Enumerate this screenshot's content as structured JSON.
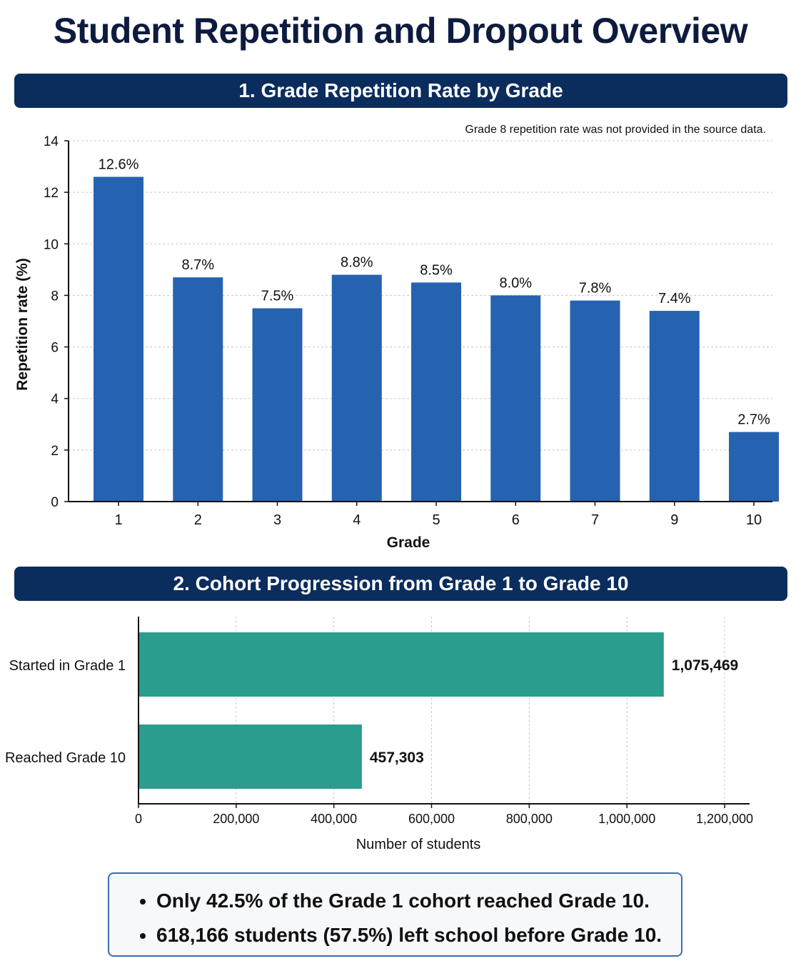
{
  "page": {
    "title": "Student Repetition and Dropout Overview"
  },
  "colors": {
    "banner": "#0b2d5e",
    "bar_blue": "#2563b0",
    "bar_teal": "#2a9d8f",
    "summary_border": "#3b6db3"
  },
  "chart_data": [
    {
      "type": "bar",
      "title": "1. Grade Repetition Rate by Grade",
      "note": "Grade 8 repetition rate was not provided in the source data.",
      "categories": [
        "1",
        "2",
        "3",
        "4",
        "5",
        "6",
        "7",
        "9",
        "10"
      ],
      "values": [
        12.6,
        8.7,
        7.5,
        8.8,
        8.5,
        8.0,
        7.8,
        7.4,
        2.7
      ],
      "data_labels": [
        "12.6%",
        "8.7%",
        "7.5%",
        "8.8%",
        "8.5%",
        "8.0%",
        "7.8%",
        "7.4%",
        "2.7%"
      ],
      "xlabel": "Grade",
      "ylabel": "Repetition rate (%)",
      "ylim": [
        0,
        14
      ],
      "yticks": [
        0,
        2,
        4,
        6,
        8,
        10,
        12,
        14
      ],
      "grid": "horizontal dashed"
    },
    {
      "type": "bar",
      "orientation": "horizontal",
      "title": "2. Cohort Progression from Grade 1 to Grade 10",
      "categories": [
        "Started in Grade 1",
        "Reached Grade 10"
      ],
      "values": [
        1075469,
        457303
      ],
      "data_labels": [
        "1,075,469",
        "457,303"
      ],
      "xlabel": "Number of students",
      "xlim": [
        0,
        1200000
      ],
      "xticks": [
        0,
        200000,
        400000,
        600000,
        800000,
        1000000,
        1200000
      ],
      "xtick_labels": [
        "0",
        "200,000",
        "400,000",
        "600,000",
        "800,000",
        "1,000,000",
        "1,200,000"
      ],
      "grid": "vertical dashed"
    }
  ],
  "summary": {
    "items": [
      "Only 42.5% of the Grade 1 cohort reached Grade 10.",
      "618,166 students (57.5%) left school before Grade 10."
    ]
  }
}
